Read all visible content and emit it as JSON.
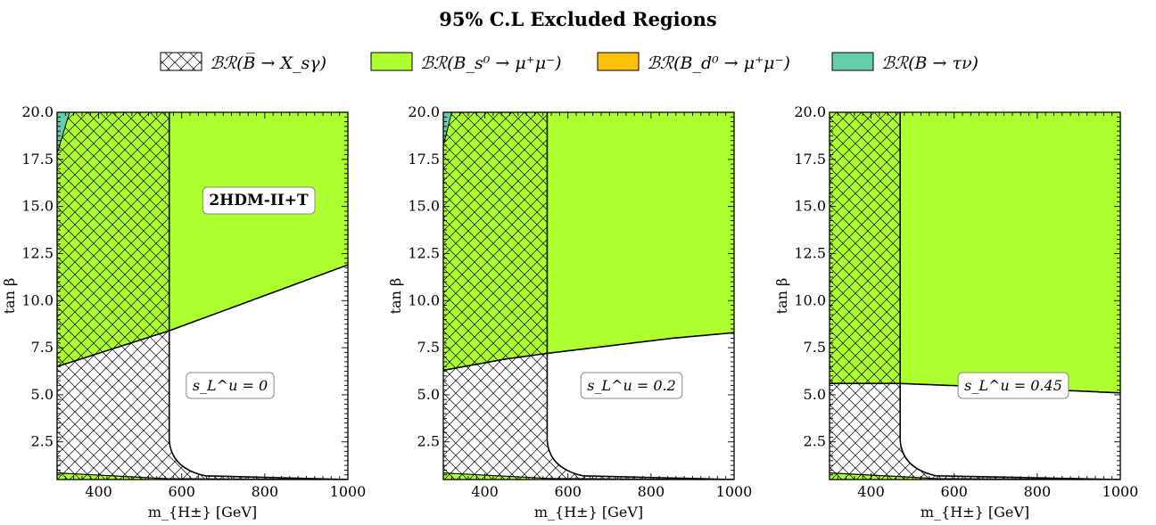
{
  "title": "95% C.L Excluded Regions",
  "legend": {
    "placement": "top",
    "items": [
      {
        "key": "bsgamma",
        "label": "ℬℛ(B̅ → X_sγ)",
        "style": "hatch",
        "color": "#000000"
      },
      {
        "key": "bsmumu",
        "label": "ℬℛ(B_s⁰ → μ⁺μ⁻)",
        "style": "fill",
        "color": "#adff2f"
      },
      {
        "key": "bdmumu",
        "label": "ℬℛ(B_d⁰ → μ⁺μ⁻)",
        "style": "fill",
        "color": "#ffc107"
      },
      {
        "key": "btaunu",
        "label": "ℬℛ(B → τν)",
        "style": "fill",
        "color": "#66cdaa"
      }
    ]
  },
  "chart_data": [
    {
      "type": "area",
      "xlabel": "m_{H±} [GeV]",
      "ylabel": "tan β",
      "xlim": [
        300,
        1000
      ],
      "ylim": [
        0.5,
        20
      ],
      "xticks": [
        "400",
        "600",
        "800",
        "1000"
      ],
      "yticks": [
        "2.5",
        "5.0",
        "7.5",
        "10.0",
        "12.5",
        "15.0",
        "17.5",
        "20.0"
      ],
      "annotations": [
        "2HDM-II+T",
        "s_L^u = 0"
      ],
      "regions": {
        "bsgamma_cut_x": 570,
        "bsmumu_boundary": {
          "x": [
            300,
            570,
            1000
          ],
          "y": [
            6.5,
            8.4,
            11.9
          ]
        },
        "btaunu_corner": {
          "x": [
            300,
            330,
            300
          ],
          "y": [
            20.0,
            20.0,
            17.8
          ]
        }
      }
    },
    {
      "type": "area",
      "xlabel": "m_{H±} [GeV]",
      "ylabel": "tan β",
      "xlim": [
        300,
        1000
      ],
      "ylim": [
        0.5,
        20
      ],
      "xticks": [
        "400",
        "600",
        "800",
        "1000"
      ],
      "yticks": [
        "2.5",
        "5.0",
        "7.5",
        "10.0",
        "12.5",
        "15.0",
        "17.5",
        "20.0"
      ],
      "annotations": [
        "s_L^u = 0.2"
      ],
      "regions": {
        "bsgamma_cut_x": 550,
        "bsmumu_boundary": {
          "x": [
            300,
            450,
            550,
            700,
            850,
            1000
          ],
          "y": [
            6.3,
            6.9,
            7.2,
            7.6,
            8.0,
            8.3
          ]
        },
        "btaunu_corner": {
          "x": [
            300,
            320,
            300
          ],
          "y": [
            20.0,
            20.0,
            18.2
          ]
        }
      }
    },
    {
      "type": "area",
      "xlabel": "m_{H±} [GeV]",
      "ylabel": "tan β",
      "xlim": [
        300,
        1000
      ],
      "ylim": [
        0.5,
        20
      ],
      "xticks": [
        "400",
        "600",
        "800",
        "1000"
      ],
      "yticks": [
        "2.5",
        "5.0",
        "7.5",
        "10.0",
        "12.5",
        "15.0",
        "17.5",
        "20.0"
      ],
      "annotations": [
        "s_L^u = 0.45"
      ],
      "regions": {
        "bsgamma_cut_x": 470,
        "bsmumu_boundary": {
          "x": [
            300,
            470,
            700,
            1000
          ],
          "y": [
            5.6,
            5.6,
            5.4,
            5.1
          ]
        },
        "btaunu_corner": null
      }
    }
  ]
}
